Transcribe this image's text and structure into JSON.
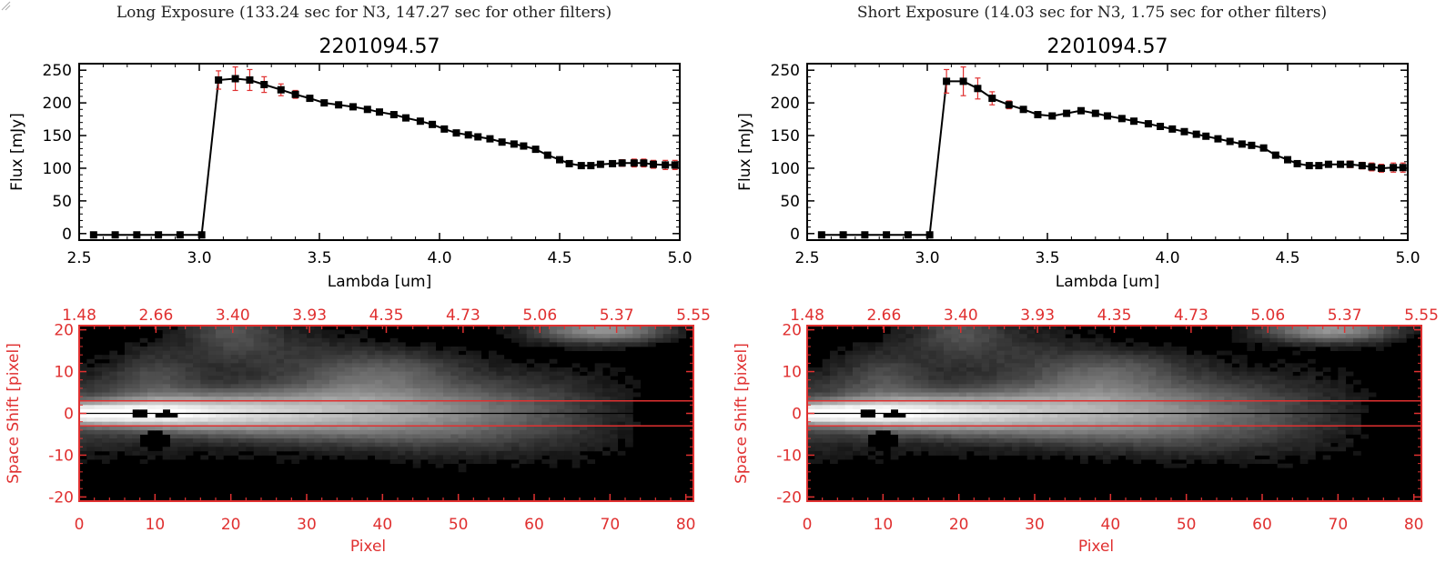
{
  "panels": [
    {
      "exposure_title": "Long Exposure (133.24 sec for N3, 147.27 sec for other filters)",
      "chart_title": "2201094.57"
    },
    {
      "exposure_title": "Short Exposure (14.03 sec for N3, 1.75 sec for other filters)",
      "chart_title": "2201094.57"
    }
  ],
  "chart_data": [
    {
      "type": "line",
      "panel": "left",
      "title": "2201094.57",
      "xlabel": "Lambda [um]",
      "ylabel": "Flux [mJy]",
      "xlim": [
        2.5,
        5.0
      ],
      "ylim": [
        -10,
        260
      ],
      "xticks": [
        "2.5",
        "3.0",
        "3.5",
        "4.0",
        "4.5",
        "5.0"
      ],
      "yticks": [
        "0",
        "50",
        "100",
        "150",
        "200",
        "250"
      ],
      "x": [
        2.56,
        2.65,
        2.74,
        2.83,
        2.92,
        3.01,
        3.08,
        3.15,
        3.21,
        3.27,
        3.34,
        3.4,
        3.46,
        3.52,
        3.58,
        3.64,
        3.7,
        3.75,
        3.81,
        3.86,
        3.92,
        3.97,
        4.02,
        4.07,
        4.12,
        4.16,
        4.21,
        4.26,
        4.31,
        4.35,
        4.4,
        4.45,
        4.5,
        4.54,
        4.59,
        4.63,
        4.67,
        4.72,
        4.76,
        4.81,
        4.85,
        4.89,
        4.94,
        4.98
      ],
      "values": [
        -2,
        -2,
        -2,
        -2,
        -2,
        -2,
        235,
        237,
        235,
        228,
        220,
        213,
        207,
        200,
        197,
        194,
        190,
        186,
        182,
        177,
        172,
        167,
        160,
        154,
        151,
        148,
        145,
        140,
        137,
        134,
        129,
        120,
        113,
        107,
        104,
        104,
        106,
        107,
        108,
        108,
        108,
        106,
        105,
        105
      ],
      "errors": [
        0,
        0,
        0,
        0,
        0,
        0,
        14,
        18,
        16,
        12,
        9,
        6,
        4,
        3,
        2,
        2,
        2,
        2,
        2,
        2,
        2,
        2,
        2,
        2,
        2,
        2,
        2,
        2,
        2,
        2,
        2,
        2,
        2,
        2,
        2,
        3,
        4,
        4,
        5,
        6,
        6,
        6,
        7,
        7
      ]
    },
    {
      "type": "heatmap",
      "panel": "left",
      "xlabel": "Pixel",
      "ylabel": "Space Shift [pixel]",
      "xlim": [
        0,
        81
      ],
      "ylim": [
        -21,
        21
      ],
      "xticks": [
        "0",
        "10",
        "20",
        "30",
        "40",
        "50",
        "60",
        "70",
        "80"
      ],
      "yticks": [
        "-20",
        "-10",
        "0",
        "10",
        "20"
      ],
      "top_xticks": [
        "1.48",
        "2.66",
        "3.40",
        "3.93",
        "4.35",
        "4.73",
        "5.06",
        "5.37",
        "5.55"
      ],
      "aperture": [
        -3,
        3
      ],
      "colormap": "grayscale"
    },
    {
      "type": "line",
      "panel": "right",
      "title": "2201094.57",
      "xlabel": "Lambda [um]",
      "ylabel": "Flux [mJy]",
      "xlim": [
        2.5,
        5.0
      ],
      "ylim": [
        -10,
        260
      ],
      "xticks": [
        "2.5",
        "3.0",
        "3.5",
        "4.0",
        "4.5",
        "5.0"
      ],
      "yticks": [
        "0",
        "50",
        "100",
        "150",
        "200",
        "250"
      ],
      "x": [
        2.56,
        2.65,
        2.74,
        2.83,
        2.92,
        3.01,
        3.08,
        3.15,
        3.21,
        3.27,
        3.34,
        3.4,
        3.46,
        3.52,
        3.58,
        3.64,
        3.7,
        3.75,
        3.81,
        3.86,
        3.92,
        3.97,
        4.02,
        4.07,
        4.12,
        4.16,
        4.21,
        4.26,
        4.31,
        4.35,
        4.4,
        4.45,
        4.5,
        4.54,
        4.59,
        4.63,
        4.67,
        4.72,
        4.76,
        4.81,
        4.85,
        4.89,
        4.94,
        4.98
      ],
      "values": [
        -2,
        -2,
        -2,
        -2,
        -2,
        -2,
        233,
        233,
        222,
        207,
        197,
        190,
        182,
        180,
        184,
        188,
        184,
        180,
        176,
        172,
        168,
        164,
        160,
        156,
        152,
        149,
        145,
        141,
        137,
        135,
        131,
        120,
        113,
        107,
        104,
        104,
        106,
        106,
        106,
        104,
        102,
        100,
        101,
        101
      ],
      "errors": [
        0,
        0,
        0,
        0,
        0,
        0,
        18,
        22,
        16,
        10,
        6,
        4,
        3,
        3,
        3,
        2,
        2,
        2,
        2,
        2,
        2,
        2,
        2,
        2,
        2,
        2,
        2,
        2,
        2,
        2,
        2,
        2,
        2,
        2,
        2,
        3,
        4,
        4,
        5,
        5,
        6,
        6,
        7,
        7
      ]
    },
    {
      "type": "heatmap",
      "panel": "right",
      "xlabel": "Pixel",
      "ylabel": "Space Shift [pixel]",
      "xlim": [
        0,
        81
      ],
      "ylim": [
        -21,
        21
      ],
      "xticks": [
        "0",
        "10",
        "20",
        "30",
        "40",
        "50",
        "60",
        "70",
        "80"
      ],
      "yticks": [
        "-20",
        "-10",
        "0",
        "10",
        "20"
      ],
      "top_xticks": [
        "1.48",
        "2.66",
        "3.40",
        "3.93",
        "4.35",
        "4.73",
        "5.06",
        "5.37",
        "5.55"
      ],
      "aperture": [
        -3,
        3
      ],
      "colormap": "grayscale"
    }
  ]
}
